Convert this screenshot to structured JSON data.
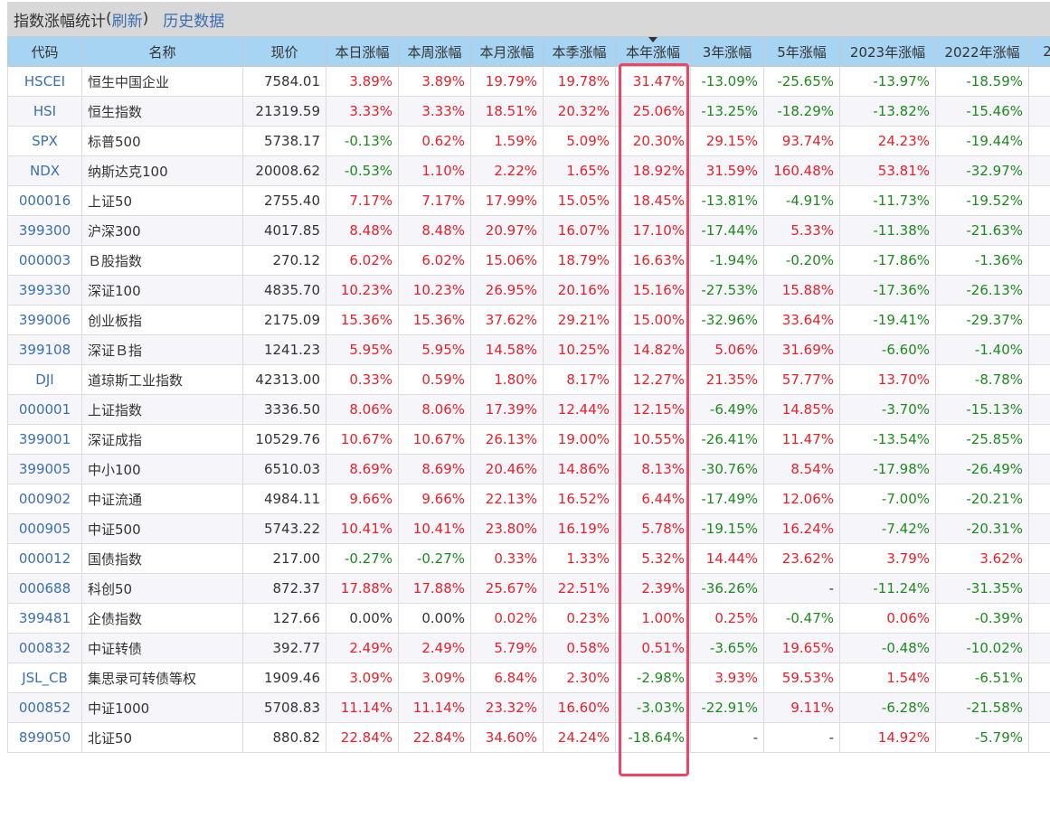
{
  "header": {
    "title": "指数涨幅统计",
    "refresh_label": "刷新",
    "history_label": "历史数据"
  },
  "columns": [
    "代码",
    "名称",
    "现价",
    "本日涨幅",
    "本周涨幅",
    "本月涨幅",
    "本季涨幅",
    "本年涨幅",
    "3年涨幅",
    "5年涨幅",
    "2023年涨幅",
    "2022年涨幅",
    "2"
  ],
  "sorted_column": "本年涨幅",
  "colors": {
    "up": "#e8202a",
    "down": "#1e8a1e",
    "header_bg": "#a6d4f2",
    "link": "#3a6fb0",
    "highlight": "#ee4466"
  },
  "rows": [
    {
      "code": "HSCEI",
      "name": "恒生中国企业",
      "price": "7584.01",
      "day": "3.89%",
      "week": "3.89%",
      "month": "19.79%",
      "quarter": "19.78%",
      "year": "31.47%",
      "y3": "-13.09%",
      "y5": "-25.65%",
      "y2023": "-13.97%",
      "y2022": "-18.59%"
    },
    {
      "code": "HSI",
      "name": "恒生指数",
      "price": "21319.59",
      "day": "3.33%",
      "week": "3.33%",
      "month": "18.51%",
      "quarter": "20.32%",
      "year": "25.06%",
      "y3": "-13.25%",
      "y5": "-18.29%",
      "y2023": "-13.82%",
      "y2022": "-15.46%"
    },
    {
      "code": "SPX",
      "name": "标普500",
      "price": "5738.17",
      "day": "-0.13%",
      "week": "0.62%",
      "month": "1.59%",
      "quarter": "5.09%",
      "year": "20.30%",
      "y3": "29.15%",
      "y5": "93.74%",
      "y2023": "24.23%",
      "y2022": "-19.44%"
    },
    {
      "code": "NDX",
      "name": "纳斯达克100",
      "price": "20008.62",
      "day": "-0.53%",
      "week": "1.10%",
      "month": "2.22%",
      "quarter": "1.65%",
      "year": "18.92%",
      "y3": "31.59%",
      "y5": "160.48%",
      "y2023": "53.81%",
      "y2022": "-32.97%"
    },
    {
      "code": "000016",
      "name": "上证50",
      "price": "2755.40",
      "day": "7.17%",
      "week": "7.17%",
      "month": "17.99%",
      "quarter": "15.05%",
      "year": "18.45%",
      "y3": "-13.81%",
      "y5": "-4.91%",
      "y2023": "-11.73%",
      "y2022": "-19.52%"
    },
    {
      "code": "399300",
      "name": "沪深300",
      "price": "4017.85",
      "day": "8.48%",
      "week": "8.48%",
      "month": "20.97%",
      "quarter": "16.07%",
      "year": "17.10%",
      "y3": "-17.44%",
      "y5": "5.33%",
      "y2023": "-11.38%",
      "y2022": "-21.63%"
    },
    {
      "code": "000003",
      "name": "Ｂ股指数",
      "price": "270.12",
      "day": "6.02%",
      "week": "6.02%",
      "month": "15.06%",
      "quarter": "18.79%",
      "year": "16.63%",
      "y3": "-1.94%",
      "y5": "-0.20%",
      "y2023": "-17.86%",
      "y2022": "-1.36%"
    },
    {
      "code": "399330",
      "name": "深证100",
      "price": "4835.70",
      "day": "10.23%",
      "week": "10.23%",
      "month": "26.95%",
      "quarter": "20.16%",
      "year": "15.16%",
      "y3": "-27.53%",
      "y5": "15.88%",
      "y2023": "-17.36%",
      "y2022": "-26.13%"
    },
    {
      "code": "399006",
      "name": "创业板指",
      "price": "2175.09",
      "day": "15.36%",
      "week": "15.36%",
      "month": "37.62%",
      "quarter": "29.21%",
      "year": "15.00%",
      "y3": "-32.96%",
      "y5": "33.64%",
      "y2023": "-19.41%",
      "y2022": "-29.37%"
    },
    {
      "code": "399108",
      "name": "深证Ｂ指",
      "price": "1241.23",
      "day": "5.95%",
      "week": "5.95%",
      "month": "14.58%",
      "quarter": "10.25%",
      "year": "14.82%",
      "y3": "5.06%",
      "y5": "31.69%",
      "y2023": "-6.60%",
      "y2022": "-1.40%"
    },
    {
      "code": "DJI",
      "name": "道琼斯工业指数",
      "price": "42313.00",
      "day": "0.33%",
      "week": "0.59%",
      "month": "1.80%",
      "quarter": "8.17%",
      "year": "12.27%",
      "y3": "21.35%",
      "y5": "57.77%",
      "y2023": "13.70%",
      "y2022": "-8.78%"
    },
    {
      "code": "000001",
      "name": "上证指数",
      "price": "3336.50",
      "day": "8.06%",
      "week": "8.06%",
      "month": "17.39%",
      "quarter": "12.44%",
      "year": "12.15%",
      "y3": "-6.49%",
      "y5": "14.85%",
      "y2023": "-3.70%",
      "y2022": "-15.13%"
    },
    {
      "code": "399001",
      "name": "深证成指",
      "price": "10529.76",
      "day": "10.67%",
      "week": "10.67%",
      "month": "26.13%",
      "quarter": "19.00%",
      "year": "10.55%",
      "y3": "-26.41%",
      "y5": "11.47%",
      "y2023": "-13.54%",
      "y2022": "-25.85%"
    },
    {
      "code": "399005",
      "name": "中小100",
      "price": "6510.03",
      "day": "8.69%",
      "week": "8.69%",
      "month": "20.46%",
      "quarter": "14.86%",
      "year": "8.13%",
      "y3": "-30.76%",
      "y5": "8.54%",
      "y2023": "-17.98%",
      "y2022": "-26.49%"
    },
    {
      "code": "000902",
      "name": "中证流通",
      "price": "4984.11",
      "day": "9.66%",
      "week": "9.66%",
      "month": "22.13%",
      "quarter": "16.52%",
      "year": "6.44%",
      "y3": "-17.49%",
      "y5": "12.06%",
      "y2023": "-7.00%",
      "y2022": "-20.21%"
    },
    {
      "code": "000905",
      "name": "中证500",
      "price": "5743.22",
      "day": "10.41%",
      "week": "10.41%",
      "month": "23.80%",
      "quarter": "16.19%",
      "year": "5.78%",
      "y3": "-19.15%",
      "y5": "16.24%",
      "y2023": "-7.42%",
      "y2022": "-20.31%"
    },
    {
      "code": "000012",
      "name": "国债指数",
      "price": "217.00",
      "day": "-0.27%",
      "week": "-0.27%",
      "month": "0.33%",
      "quarter": "1.33%",
      "year": "5.32%",
      "y3": "14.44%",
      "y5": "23.62%",
      "y2023": "3.79%",
      "y2022": "3.62%"
    },
    {
      "code": "000688",
      "name": "科创50",
      "price": "872.37",
      "day": "17.88%",
      "week": "17.88%",
      "month": "25.67%",
      "quarter": "22.51%",
      "year": "2.39%",
      "y3": "-36.26%",
      "y5": "-",
      "y2023": "-11.24%",
      "y2022": "-31.35%"
    },
    {
      "code": "399481",
      "name": "企债指数",
      "price": "127.66",
      "day": "0.00%",
      "week": "0.00%",
      "month": "0.02%",
      "quarter": "0.23%",
      "year": "1.00%",
      "y3": "0.25%",
      "y5": "-0.47%",
      "y2023": "0.06%",
      "y2022": "-0.39%"
    },
    {
      "code": "000832",
      "name": "中证转债",
      "price": "392.77",
      "day": "2.49%",
      "week": "2.49%",
      "month": "5.79%",
      "quarter": "0.58%",
      "year": "0.51%",
      "y3": "-3.65%",
      "y5": "19.65%",
      "y2023": "-0.48%",
      "y2022": "-10.02%"
    },
    {
      "code": "JSL_CB",
      "name": "集思录可转债等权",
      "price": "1909.46",
      "day": "3.09%",
      "week": "3.09%",
      "month": "6.84%",
      "quarter": "2.30%",
      "year": "-2.98%",
      "y3": "3.93%",
      "y5": "59.53%",
      "y2023": "1.54%",
      "y2022": "-6.51%"
    },
    {
      "code": "000852",
      "name": "中证1000",
      "price": "5708.83",
      "day": "11.14%",
      "week": "11.14%",
      "month": "23.32%",
      "quarter": "16.60%",
      "year": "-3.03%",
      "y3": "-22.91%",
      "y5": "9.11%",
      "y2023": "-6.28%",
      "y2022": "-21.58%"
    },
    {
      "code": "899050",
      "name": "北证50",
      "price": "880.82",
      "day": "22.84%",
      "week": "22.84%",
      "month": "34.60%",
      "quarter": "24.24%",
      "year": "-18.64%",
      "y3": "-",
      "y5": "-",
      "y2023": "14.92%",
      "y2022": "-5.79%"
    }
  ]
}
